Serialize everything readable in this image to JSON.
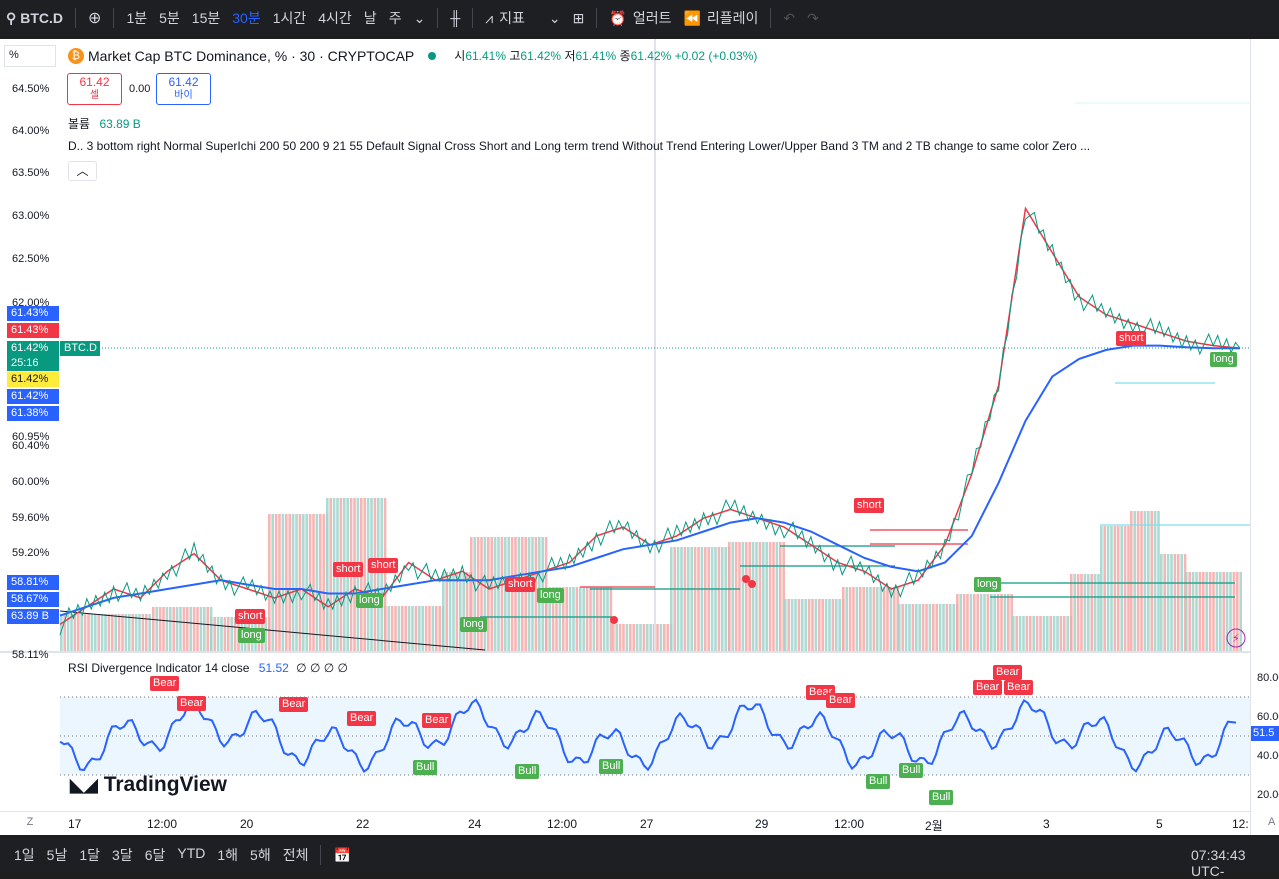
{
  "toolbar": {
    "symbol": "BTC.D",
    "intervals": [
      "1분",
      "5분",
      "15분",
      "30분",
      "1시간",
      "4시간",
      "날",
      "주"
    ],
    "active_interval": "30분",
    "indicators_label": "지표",
    "alert_label": "얼러트",
    "replay_label": "리플레이"
  },
  "legend": {
    "title": "Market Cap BTC Dominance, % · 30 · CRYPTOCAP",
    "open_label": "시",
    "open": "61.41%",
    "high_label": "고",
    "high": "61.42%",
    "low_label": "저",
    "low": "61.41%",
    "close_label": "종",
    "close": "61.42%",
    "change": "+0.02 (+0.03%)",
    "sell_price": "61.42",
    "sell_label": "셀",
    "spread": "0.00",
    "buy_price": "61.42",
    "buy_label": "바이",
    "volume_label": "볼륨",
    "volume": "63.89 B",
    "indicator_text": "D.. 3 bottom right Normal SuperIchi 200 50 200 9 21 55 Default Signal Cross Short and Long term trend Without Trend Entering Lower/Upper Band 3 TM and 2 TB change to same color Zero ...",
    "collapse_icon": "chevron-up-icon",
    "percent_label": "%"
  },
  "price_axis": {
    "labels": [
      "64.50%",
      "64.00%",
      "63.50%",
      "63.00%",
      "62.50%",
      "62.00%",
      "60.95%",
      "60.40%",
      "60.00%",
      "59.60%",
      "59.20%",
      "58.11%"
    ],
    "tags": [
      {
        "text": "61.43%",
        "color": "#2962ff"
      },
      {
        "text": "61.43%",
        "color": "#f23645"
      },
      {
        "text": "61.42%",
        "color": "#089981"
      },
      {
        "text": "25:16",
        "color": "#089981"
      },
      {
        "text": "61.42%",
        "color": "#ffeb3b"
      },
      {
        "text": "61.42%",
        "color": "#2962ff"
      },
      {
        "text": "61.38%",
        "color": "#2962ff"
      }
    ],
    "lower_tags": [
      {
        "text": "58.81%",
        "color": "#2962ff"
      },
      {
        "text": "58.67%",
        "color": "#2962ff"
      },
      {
        "text": "63.89 B",
        "color": "#2962ff"
      }
    ],
    "symbol_tag": "BTC.D"
  },
  "rsi": {
    "title": "RSI Divergence Indicator 14 close",
    "value": "51.52",
    "extras": "∅ ∅ ∅ ∅",
    "axis_labels": [
      "80.00",
      "60.00",
      "40.00",
      "20.00"
    ],
    "value_tag": "51.5",
    "bear_label": "Bear",
    "bull_label": "Bull"
  },
  "signals": {
    "short_label": "short",
    "long_label": "long"
  },
  "time_axis": {
    "labels": [
      "17",
      "12:00",
      "20",
      "22",
      "24",
      "12:00",
      "27",
      "29",
      "12:00",
      "2월",
      "3",
      "5",
      "12:"
    ],
    "left_btn": "Z",
    "right_btn": "A"
  },
  "watermark": "TradingView",
  "bottom": {
    "ranges": [
      "1일",
      "5날",
      "1달",
      "3달",
      "6달",
      "YTD",
      "1해",
      "5해",
      "전체"
    ],
    "clock": "07:34:43 UTC-"
  },
  "colors": {
    "up": "#089981",
    "down": "#f23645",
    "blue": "#2962ff",
    "accent": "#2962ff"
  },
  "chart_data": {
    "type": "line",
    "series": [
      {
        "values": [
          58.3,
          58.5,
          58.7,
          58.6,
          58.9,
          59.1,
          58.8,
          58.7,
          58.6,
          58.7,
          58.5,
          58.7,
          58.6,
          59.0,
          58.8,
          58.9,
          58.7,
          58.8,
          58.9,
          59.0,
          59.3,
          59.4,
          59.2,
          59.3,
          59.5,
          59.6,
          59.5,
          59.4,
          59.2,
          59.0,
          58.9,
          58.7,
          58.8,
          59.2,
          60.0,
          61.0,
          63.0,
          62.5,
          62.0,
          61.8,
          61.7,
          61.6,
          61.5,
          61.45,
          61.42
        ]
      },
      {
        "values": [
          58.4,
          58.5,
          58.6,
          58.65,
          58.7,
          58.75,
          58.8,
          58.75,
          58.7,
          58.7,
          58.65,
          58.65,
          58.7,
          58.75,
          58.8,
          58.8,
          58.8,
          58.85,
          58.9,
          58.95,
          59.05,
          59.15,
          59.2,
          59.25,
          59.35,
          59.45,
          59.5,
          59.45,
          59.35,
          59.2,
          59.05,
          58.95,
          58.9,
          59.0,
          59.3,
          59.9,
          60.6,
          61.1,
          61.3,
          61.4,
          61.45,
          61.45,
          61.43,
          61.42,
          61.42
        ]
      }
    ],
    "ylim": [
      58.0,
      64.8
    ]
  }
}
